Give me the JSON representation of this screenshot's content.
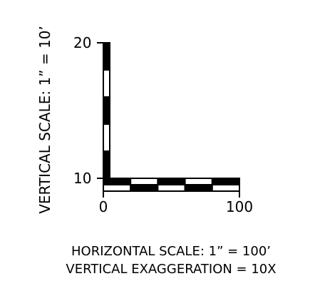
{
  "scale_bar": {
    "vertical_axis_label": "VERTICAL SCALE: 1” = 10’",
    "vertical_ticks": [
      "20",
      "10"
    ],
    "horizontal_ticks": [
      "0",
      "100"
    ],
    "vertical_segments": 5,
    "horizontal_segments": 5
  },
  "captions": {
    "horizontal_scale": "HORIZONTAL SCALE: 1” = 100’",
    "vertical_exaggeration": "VERTICAL EXAGGERATION = 10X"
  },
  "colors": {
    "ink": "#000000",
    "background": "#ffffff"
  }
}
